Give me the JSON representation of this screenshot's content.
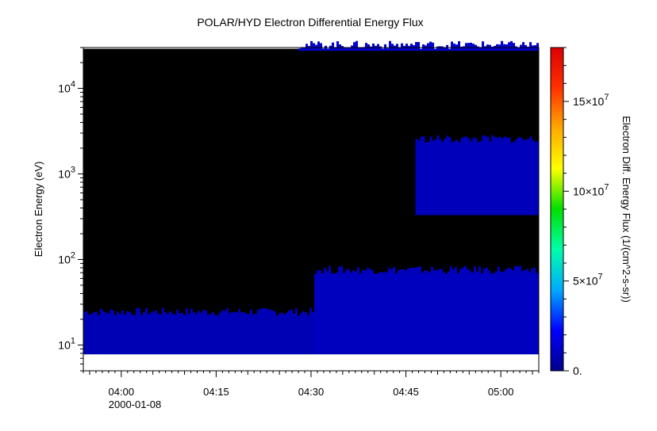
{
  "chart_data": {
    "type": "heatmap",
    "title": "POLAR/HYD  Electron Differential Energy Flux",
    "xlabel": "",
    "ylabel": "Electron Energy (eV)",
    "x_date_label": "2000-01-08",
    "x_tick_labels": [
      "04:00",
      "04:15",
      "04:30",
      "04:45",
      "05:00"
    ],
    "x_ticks_minutes": [
      0,
      15,
      30,
      45,
      60
    ],
    "xlim_minutes": [
      -6,
      66
    ],
    "y_scale": "log",
    "ylim": [
      5,
      30000
    ],
    "y_tick_labels": [
      {
        "base": "10",
        "exp": "1",
        "value": 10
      },
      {
        "base": "10",
        "exp": "2",
        "value": 100
      },
      {
        "base": "10",
        "exp": "3",
        "value": 1000
      },
      {
        "base": "10",
        "exp": "4",
        "value": 10000
      }
    ],
    "data_extent": {
      "x_minutes": [
        -6,
        66
      ],
      "energy_ev": [
        7.8,
        29000
      ]
    },
    "background_color": "#000000",
    "flux_bands": [
      {
        "label": "low-energy band, before 04:30",
        "x_minutes": [
          -6,
          30.5
        ],
        "energy_ev": [
          7.8,
          22
        ],
        "value": 8000000
      },
      {
        "label": "low-energy band, 04:30-05:06",
        "x_minutes": [
          30.5,
          66
        ],
        "energy_ev": [
          7.8,
          68
        ],
        "value": 10000000
      },
      {
        "label": "keV band, from 04:46",
        "x_minutes": [
          46.5,
          66
        ],
        "energy_ev": [
          330,
          2300
        ],
        "value": 9000000
      },
      {
        "label": "top-energy band, from 04:28",
        "x_minutes": [
          28,
          66
        ],
        "energy_ev": [
          27500,
          29000
        ],
        "value": 12000000
      }
    ],
    "colorbar": {
      "label": "Electron Diff. Energy Flux (1/(cm^2-s-sr))",
      "range": [
        0,
        180000000
      ],
      "tick_labels": [
        {
          "text": "0.",
          "value": 0
        },
        {
          "text": "5×10",
          "exp": "7",
          "value": 50000000
        },
        {
          "text": "10×10",
          "exp": "7",
          "value": 100000000
        },
        {
          "text": "15×10",
          "exp": "7",
          "value": 150000000
        }
      ],
      "colors": [
        "#00008c",
        "#0000ff",
        "#00aaff",
        "#00ffaa",
        "#00e000",
        "#ffff00",
        "#ffaa00",
        "#ff3000",
        "#dd0000"
      ]
    },
    "grid": false
  }
}
